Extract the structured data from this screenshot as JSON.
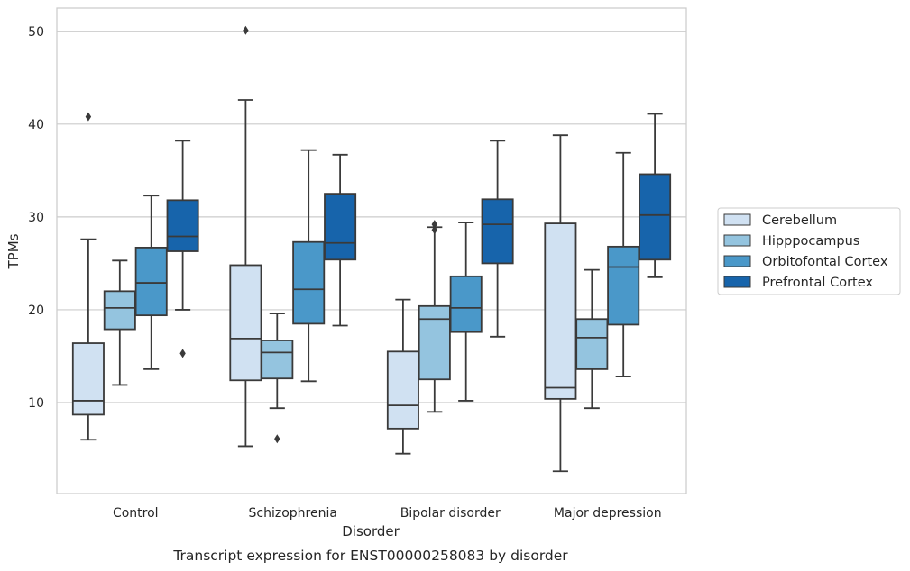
{
  "chart_data": {
    "type": "box",
    "xlabel": "Disorder",
    "ylabel": "TPMs",
    "caption": "Transcript expression for ENST00000258083 by disorder",
    "categories": [
      "Control",
      "Schizophrenia",
      "Bipolar disorder",
      "Major depression"
    ],
    "yticks": [
      10,
      20,
      30,
      40,
      50
    ],
    "ylim": [
      0.2,
      52.5
    ],
    "grid": "horizontal",
    "legend_position": "right",
    "series": [
      {
        "name": "Cerebellum",
        "color": "#d0e1f2",
        "boxes": [
          {
            "whislo": 6.0,
            "q1": 8.7,
            "med": 10.2,
            "q3": 16.4,
            "whishi": 27.6,
            "fliers": [
              40.8
            ]
          },
          {
            "whislo": 5.3,
            "q1": 12.4,
            "med": 16.9,
            "q3": 24.8,
            "whishi": 42.6,
            "fliers": [
              50.1
            ]
          },
          {
            "whislo": 4.5,
            "q1": 7.2,
            "med": 9.7,
            "q3": 15.5,
            "whishi": 21.1,
            "fliers": []
          },
          {
            "whislo": 2.6,
            "q1": 10.4,
            "med": 11.6,
            "q3": 29.3,
            "whishi": 38.8,
            "fliers": []
          }
        ]
      },
      {
        "name": "Hipppocampus",
        "color": "#94c4df",
        "boxes": [
          {
            "whislo": 11.9,
            "q1": 17.9,
            "med": 20.2,
            "q3": 22.0,
            "whishi": 25.3,
            "fliers": []
          },
          {
            "whislo": 9.4,
            "q1": 12.6,
            "med": 15.4,
            "q3": 16.7,
            "whishi": 19.6,
            "fliers": [
              6.1
            ]
          },
          {
            "whislo": 9.0,
            "q1": 12.5,
            "med": 19.0,
            "q3": 20.4,
            "whishi": 28.9,
            "fliers": [
              28.6,
              29.2
            ]
          },
          {
            "whislo": 9.4,
            "q1": 13.6,
            "med": 17.0,
            "q3": 19.0,
            "whishi": 24.3,
            "fliers": []
          }
        ]
      },
      {
        "name": "Orbitofontal Cortex",
        "color": "#4a98c9",
        "boxes": [
          {
            "whislo": 13.6,
            "q1": 19.4,
            "med": 22.9,
            "q3": 26.7,
            "whishi": 32.3,
            "fliers": []
          },
          {
            "whislo": 12.3,
            "q1": 18.5,
            "med": 22.2,
            "q3": 27.3,
            "whishi": 37.2,
            "fliers": []
          },
          {
            "whislo": 10.2,
            "q1": 17.6,
            "med": 20.2,
            "q3": 23.6,
            "whishi": 29.4,
            "fliers": []
          },
          {
            "whislo": 12.8,
            "q1": 18.4,
            "med": 24.6,
            "q3": 26.8,
            "whishi": 36.9,
            "fliers": []
          }
        ]
      },
      {
        "name": "Prefrontal Cortex",
        "color": "#1764ab",
        "boxes": [
          {
            "whislo": 20.0,
            "q1": 26.3,
            "med": 27.9,
            "q3": 31.8,
            "whishi": 38.2,
            "fliers": [
              15.3
            ]
          },
          {
            "whislo": 18.3,
            "q1": 25.4,
            "med": 27.2,
            "q3": 32.5,
            "whishi": 36.7,
            "fliers": []
          },
          {
            "whislo": 17.1,
            "q1": 25.0,
            "med": 29.2,
            "q3": 31.9,
            "whishi": 38.2,
            "fliers": []
          },
          {
            "whislo": 23.5,
            "q1": 25.4,
            "med": 30.2,
            "q3": 34.6,
            "whishi": 41.1,
            "fliers": []
          }
        ]
      }
    ]
  }
}
